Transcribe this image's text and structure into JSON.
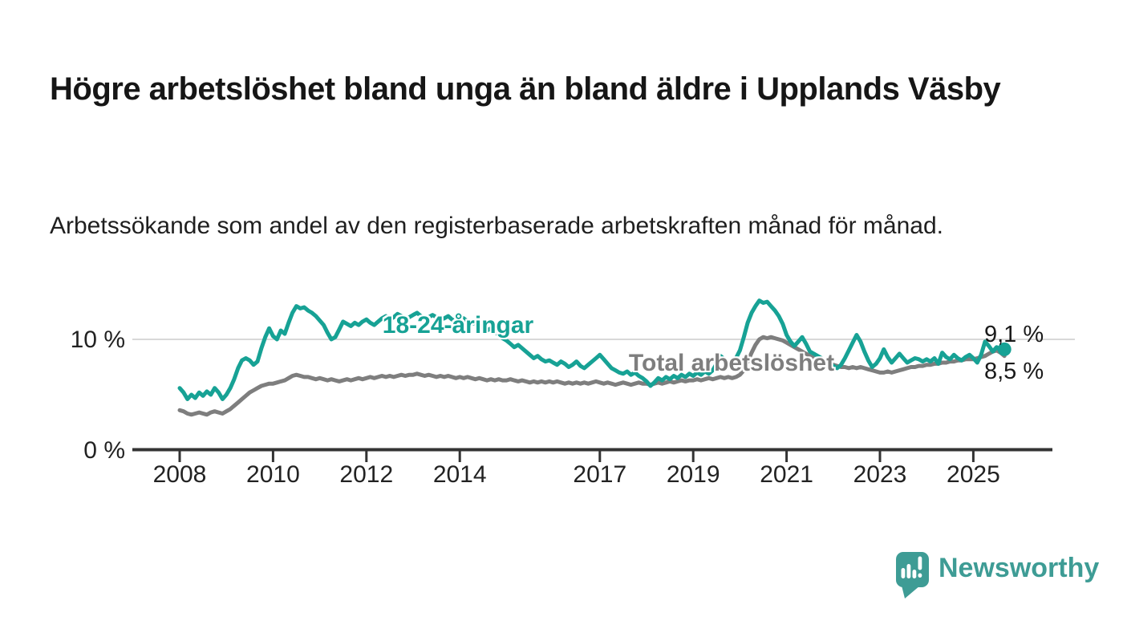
{
  "page": {
    "title": "Högre arbetslöshet bland unga än bland äldre i Upplands Väsby",
    "subtitle": "Arbetssökande som andel av den registerbaserade arbetskraften månad för månad."
  },
  "branding": {
    "logo_text": "Newsworthy",
    "logo_icon": "speech-bubble-bar-chart-icon",
    "logo_color": "#3E9C95"
  },
  "chart_data": {
    "type": "line",
    "title": "Högre arbetslöshet bland unga än bland äldre i Upplands Väsby",
    "subtitle": "Arbetssökande som andel av den registerbaserade arbetskraften månad för månad.",
    "unit": "%",
    "grid": "horizontal-only",
    "legend_position": "inline-labels-on-lines",
    "start_year": 2008,
    "points_per_year": 12,
    "x_axis": {
      "tick_years": [
        2008,
        2010,
        2012,
        2014,
        2017,
        2019,
        2021,
        2023,
        2025
      ],
      "range_years": [
        2008.0,
        2025.67
      ]
    },
    "y_axis": {
      "ticks": [
        {
          "value": 10,
          "label": "10 %"
        },
        {
          "value": 0,
          "label": "0 %"
        }
      ],
      "grid_values": [
        10
      ],
      "ylim": [
        0,
        16
      ]
    },
    "colors": {
      "young": "#17A295",
      "total": "#7E7E7E",
      "gridline": "#D8D8D8",
      "axis": "#333333"
    },
    "series": [
      {
        "name": "18-24-åringar",
        "color": "#17A295",
        "end_label": "9,1 %",
        "end_value": 9.1,
        "end_marker": "dot",
        "values": [
          5.6,
          5.2,
          4.6,
          5.0,
          4.7,
          5.2,
          4.9,
          5.3,
          5.0,
          5.6,
          5.2,
          4.6,
          5.0,
          5.6,
          6.4,
          7.4,
          8.1,
          8.3,
          8.1,
          7.7,
          8.0,
          9.2,
          10.2,
          11.0,
          10.3,
          10.0,
          10.8,
          10.5,
          11.5,
          12.4,
          13.0,
          12.8,
          12.9,
          12.6,
          12.4,
          12.1,
          11.7,
          11.3,
          10.6,
          10.0,
          10.2,
          10.9,
          11.6,
          11.4,
          11.2,
          11.5,
          11.3,
          11.6,
          11.8,
          11.5,
          11.3,
          11.6,
          11.9,
          12.1,
          11.8,
          12.0,
          12.3,
          12.1,
          11.9,
          12.0,
          12.2,
          12.4,
          12.1,
          11.8,
          12.0,
          12.2,
          12.0,
          11.8,
          11.9,
          12.1,
          11.8,
          11.6,
          11.7,
          11.9,
          11.6,
          11.4,
          11.5,
          11.3,
          11.0,
          10.8,
          11.0,
          10.7,
          10.4,
          10.1,
          9.9,
          9.6,
          9.3,
          9.5,
          9.2,
          8.9,
          8.6,
          8.3,
          8.5,
          8.2,
          8.0,
          8.1,
          7.9,
          7.7,
          8.0,
          7.8,
          7.5,
          7.7,
          8.0,
          7.6,
          7.4,
          7.7,
          8.0,
          8.3,
          8.6,
          8.2,
          7.8,
          7.4,
          7.2,
          7.0,
          6.9,
          7.1,
          6.8,
          7.0,
          6.7,
          6.5,
          6.2,
          5.8,
          6.1,
          6.5,
          6.3,
          6.6,
          6.4,
          6.7,
          6.5,
          6.8,
          6.6,
          6.9,
          6.7,
          7.0,
          6.8,
          7.1,
          6.9,
          7.2,
          7.8,
          8.5,
          8.2,
          7.6,
          7.9,
          8.3,
          9.0,
          10.2,
          11.5,
          12.4,
          13.0,
          13.5,
          13.3,
          13.4,
          13.0,
          12.6,
          12.1,
          11.4,
          10.4,
          9.8,
          9.4,
          9.8,
          10.2,
          9.6,
          8.9,
          8.7,
          8.5,
          8.3,
          8.0,
          7.8,
          7.6,
          7.4,
          7.7,
          8.3,
          9.0,
          9.7,
          10.4,
          9.8,
          8.9,
          8.1,
          7.5,
          7.8,
          8.3,
          9.1,
          8.4,
          7.9,
          8.3,
          8.7,
          8.3,
          7.9,
          8.1,
          8.3,
          8.2,
          8.0,
          8.2,
          8.0,
          8.3,
          7.8,
          8.8,
          8.4,
          8.2,
          8.6,
          8.3,
          8.1,
          8.4,
          8.6,
          8.3,
          7.9,
          8.6,
          9.8,
          9.4,
          8.9,
          9.3,
          9.0,
          9.1
        ]
      },
      {
        "name": "Total arbetslöshet",
        "color": "#7E7E7E",
        "end_label": "8,5 %",
        "end_value": 8.5,
        "end_marker": "none",
        "values": [
          3.6,
          3.5,
          3.3,
          3.2,
          3.3,
          3.4,
          3.3,
          3.2,
          3.4,
          3.5,
          3.4,
          3.3,
          3.5,
          3.7,
          4.0,
          4.3,
          4.6,
          4.9,
          5.2,
          5.4,
          5.6,
          5.8,
          5.9,
          6.0,
          6.0,
          6.1,
          6.2,
          6.3,
          6.5,
          6.7,
          6.8,
          6.7,
          6.6,
          6.6,
          6.5,
          6.4,
          6.5,
          6.4,
          6.3,
          6.4,
          6.3,
          6.2,
          6.3,
          6.4,
          6.3,
          6.4,
          6.5,
          6.4,
          6.5,
          6.6,
          6.5,
          6.6,
          6.7,
          6.6,
          6.7,
          6.6,
          6.7,
          6.8,
          6.7,
          6.8,
          6.8,
          6.9,
          6.8,
          6.7,
          6.8,
          6.7,
          6.6,
          6.7,
          6.6,
          6.7,
          6.6,
          6.5,
          6.6,
          6.5,
          6.6,
          6.5,
          6.4,
          6.5,
          6.4,
          6.3,
          6.4,
          6.3,
          6.4,
          6.3,
          6.3,
          6.4,
          6.3,
          6.2,
          6.3,
          6.2,
          6.1,
          6.2,
          6.1,
          6.2,
          6.1,
          6.2,
          6.1,
          6.2,
          6.1,
          6.0,
          6.1,
          6.0,
          6.1,
          6.0,
          6.1,
          6.0,
          6.1,
          6.2,
          6.1,
          6.0,
          6.1,
          6.0,
          5.9,
          6.0,
          6.1,
          6.0,
          5.9,
          6.0,
          6.1,
          6.0,
          6.0,
          5.9,
          6.0,
          6.1,
          6.0,
          6.1,
          6.2,
          6.1,
          6.2,
          6.3,
          6.2,
          6.3,
          6.3,
          6.4,
          6.3,
          6.4,
          6.5,
          6.4,
          6.5,
          6.6,
          6.5,
          6.6,
          6.5,
          6.6,
          6.8,
          7.2,
          8.0,
          8.8,
          9.5,
          10.0,
          10.2,
          10.1,
          10.2,
          10.1,
          10.0,
          9.9,
          9.7,
          9.5,
          9.3,
          9.1,
          8.9,
          8.7,
          8.5,
          8.3,
          8.1,
          8.0,
          7.9,
          7.8,
          7.7,
          7.6,
          7.5,
          7.5,
          7.4,
          7.5,
          7.4,
          7.5,
          7.4,
          7.3,
          7.2,
          7.1,
          7.0,
          7.0,
          7.1,
          7.0,
          7.1,
          7.2,
          7.3,
          7.4,
          7.5,
          7.5,
          7.6,
          7.6,
          7.7,
          7.7,
          7.8,
          7.8,
          7.9,
          7.9,
          8.0,
          8.0,
          8.1,
          8.1,
          8.2,
          8.2,
          8.2,
          8.3,
          8.4,
          8.5,
          8.7,
          8.9,
          9.0,
          8.8,
          8.5
        ]
      }
    ]
  }
}
